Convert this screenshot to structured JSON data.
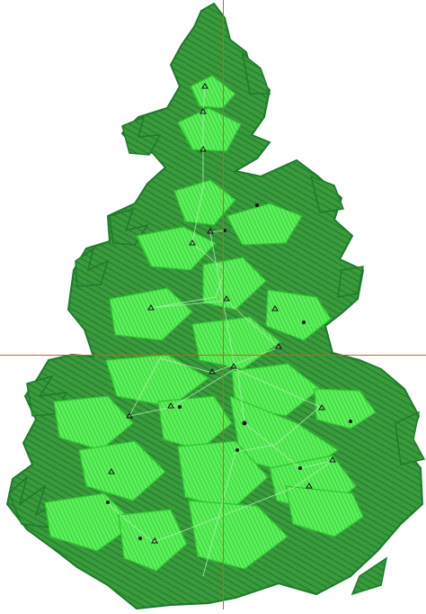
{
  "canvas": {
    "background": "#ffffff",
    "colors": {
      "dark_stitch": "#1e7a2c",
      "dark_stitch_fill": "#3a9a3c",
      "light_stitch": "#2fe02f",
      "light_stitch_fill": "#5cf05c",
      "guide_line": "#c8641e",
      "marker": "#111111"
    }
  },
  "design": {
    "subject": "pine-tree-embroidery",
    "layers": [
      "dark-green-outline-fill",
      "light-green-branch-fill"
    ],
    "guides": [
      "vertical-guide",
      "horizontal-guide"
    ]
  }
}
